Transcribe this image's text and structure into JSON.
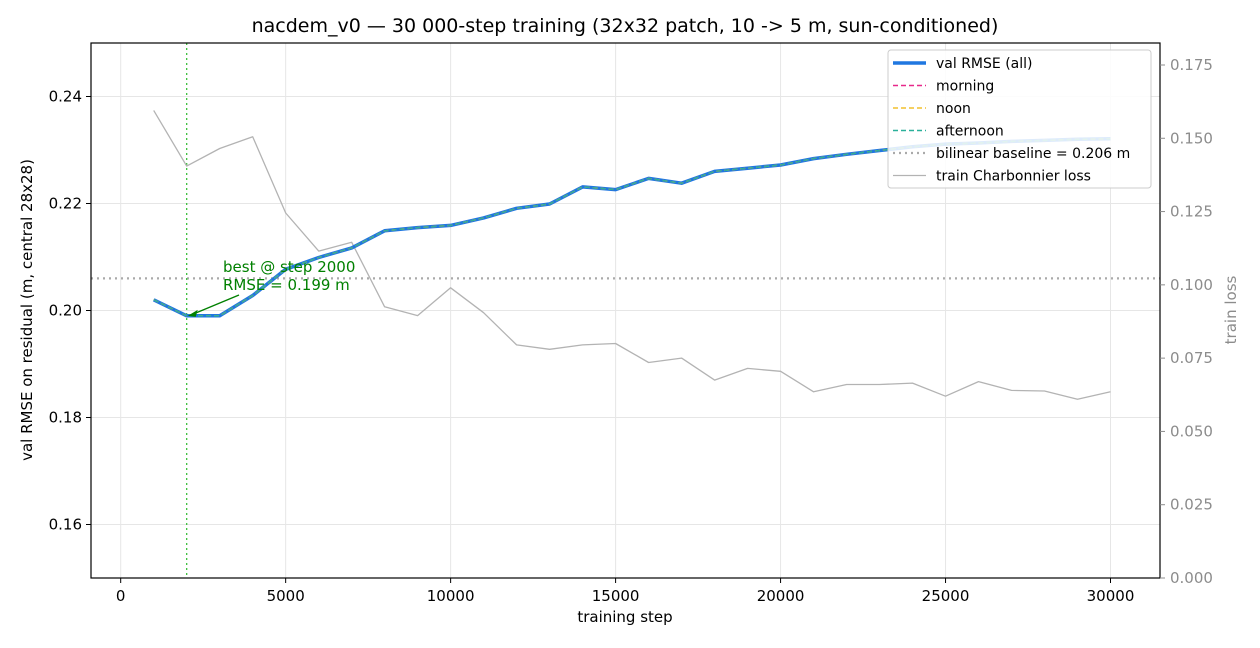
{
  "chart_data": {
    "type": "line",
    "title": "nacdem_v0 — 30 000-step training (32x32 patch, 10 -> 5 m, sun-conditioned)",
    "xlabel": "training step",
    "ylabel": "val RMSE on residual (m, central 28x28)",
    "y2label": "train loss",
    "xlim": [
      -900,
      31500
    ],
    "ylim": [
      0.15,
      0.25
    ],
    "y2lim": [
      0.0,
      0.1825
    ],
    "x_ticks": [
      0,
      5000,
      10000,
      15000,
      20000,
      25000,
      30000
    ],
    "y_ticks": [
      0.16,
      0.18,
      0.2,
      0.22,
      0.24
    ],
    "y2_ticks": [
      0.0,
      0.025,
      0.05,
      0.075,
      0.1,
      0.125,
      0.15,
      0.175
    ],
    "grid": true,
    "legend_position": "top-right",
    "series": [
      {
        "name": "val RMSE (all)",
        "axis": "left",
        "color": "#1f77e0",
        "style": "solid-thick",
        "x": [
          1000,
          2000,
          3000,
          4000,
          5000,
          6000,
          7000,
          8000,
          9000,
          10000,
          11000,
          12000,
          13000,
          14000,
          15000,
          16000,
          17000,
          18000,
          19000,
          20000,
          21000,
          22000,
          23000,
          24000,
          25000,
          26000,
          27000,
          28000,
          29000,
          30000
        ],
        "values": [
          0.202,
          0.199,
          0.199,
          0.2028,
          0.2077,
          0.2099,
          0.2117,
          0.2149,
          0.2155,
          0.2159,
          0.2173,
          0.2191,
          0.2199,
          0.2231,
          0.2226,
          0.2247,
          0.2238,
          0.226,
          0.2266,
          0.2272,
          0.2284,
          0.2292,
          0.2299,
          0.2306,
          0.2311,
          0.2313,
          0.2316,
          0.2318,
          0.232,
          0.2321
        ]
      },
      {
        "name": "morning",
        "axis": "left",
        "color": "#e7298a",
        "style": "dashed",
        "x": [
          1000,
          2000,
          3000,
          4000,
          5000,
          6000,
          7000,
          8000,
          9000,
          10000,
          11000,
          12000,
          13000,
          14000,
          15000,
          16000,
          17000,
          18000,
          19000,
          20000,
          21000,
          22000,
          23000,
          24000,
          25000,
          26000,
          27000,
          28000,
          29000,
          30000
        ],
        "values": [
          0.202,
          0.199,
          0.199,
          0.2028,
          0.2077,
          0.2099,
          0.2117,
          0.2149,
          0.2155,
          0.2159,
          0.2173,
          0.2191,
          0.2199,
          0.2231,
          0.2226,
          0.2247,
          0.2238,
          0.226,
          0.2266,
          0.2272,
          0.2284,
          0.2292,
          0.2299,
          0.2306,
          0.2311,
          0.2313,
          0.2316,
          0.2318,
          0.232,
          0.2321
        ]
      },
      {
        "name": "noon",
        "axis": "left",
        "color": "#f2c12e",
        "style": "dashed",
        "x": [
          1000,
          2000,
          3000,
          4000,
          5000,
          6000,
          7000,
          8000,
          9000,
          10000,
          11000,
          12000,
          13000,
          14000,
          15000,
          16000,
          17000,
          18000,
          19000,
          20000,
          21000,
          22000,
          23000,
          24000,
          25000,
          26000,
          27000,
          28000,
          29000,
          30000
        ],
        "values": [
          0.202,
          0.199,
          0.199,
          0.2028,
          0.2077,
          0.2099,
          0.2117,
          0.2149,
          0.2155,
          0.2159,
          0.2173,
          0.2191,
          0.2199,
          0.2231,
          0.2226,
          0.2247,
          0.2238,
          0.226,
          0.2266,
          0.2272,
          0.2284,
          0.2292,
          0.2299,
          0.2306,
          0.2311,
          0.2313,
          0.2316,
          0.2318,
          0.232,
          0.2321
        ]
      },
      {
        "name": "afternoon",
        "axis": "left",
        "color": "#2ab09a",
        "style": "dashed",
        "x": [
          1000,
          2000,
          3000,
          4000,
          5000,
          6000,
          7000,
          8000,
          9000,
          10000,
          11000,
          12000,
          13000,
          14000,
          15000,
          16000,
          17000,
          18000,
          19000,
          20000,
          21000,
          22000,
          23000,
          24000,
          25000,
          26000,
          27000,
          28000,
          29000,
          30000
        ],
        "values": [
          0.202,
          0.199,
          0.199,
          0.2028,
          0.2077,
          0.2099,
          0.2117,
          0.2149,
          0.2155,
          0.2159,
          0.2173,
          0.2191,
          0.2199,
          0.2231,
          0.2226,
          0.2247,
          0.2238,
          0.226,
          0.2266,
          0.2272,
          0.2284,
          0.2292,
          0.2299,
          0.2306,
          0.2311,
          0.2313,
          0.2316,
          0.2318,
          0.232,
          0.2321
        ]
      },
      {
        "name": "train Charbonnier loss",
        "axis": "right",
        "color": "#b3b3b3",
        "style": "solid-thin",
        "x": [
          1000,
          2000,
          3000,
          4000,
          5000,
          6000,
          7000,
          8000,
          9000,
          10000,
          11000,
          12000,
          13000,
          14000,
          15000,
          16000,
          17000,
          18000,
          19000,
          20000,
          21000,
          22000,
          23000,
          24000,
          25000,
          26000,
          27000,
          28000,
          29000,
          30000
        ],
        "values": [
          0.1595,
          0.1405,
          0.1465,
          0.1505,
          0.1245,
          0.1115,
          0.1145,
          0.0925,
          0.0895,
          0.099,
          0.0905,
          0.0795,
          0.078,
          0.0795,
          0.08,
          0.0735,
          0.075,
          0.0675,
          0.0715,
          0.0705,
          0.0635,
          0.066,
          0.066,
          0.0665,
          0.062,
          0.067,
          0.064,
          0.0638,
          0.061,
          0.0635
        ]
      }
    ],
    "baseline": {
      "label": "bilinear baseline = 0.206 m",
      "value": 0.206,
      "color": "#aaaaaa",
      "style": "dotted"
    },
    "best_marker": {
      "step": 2000,
      "value": 0.199,
      "color": "#2ca02c",
      "annotation_line1": "best @ step 2000",
      "annotation_line2": "RMSE = 0.199 m"
    }
  }
}
